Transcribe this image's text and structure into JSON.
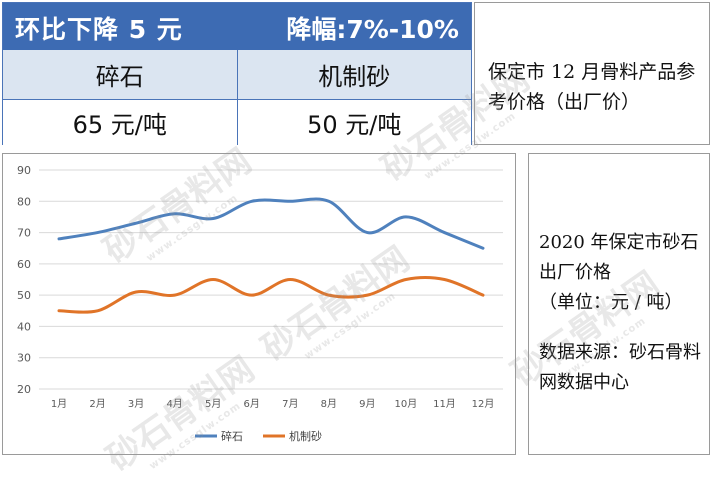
{
  "price_table": {
    "headline_left": "环比下降 5 元",
    "headline_right": "降幅:7%-10%",
    "products": [
      "碎石",
      "机制砂"
    ],
    "prices": [
      "65 元/吨",
      "50 元/吨"
    ]
  },
  "note_top": "保定市 12 月骨料产品参考价格（出厂价）",
  "note_bottom": {
    "line1": "2020 年保定市砂石出厂价格",
    "line2": "（单位：元 / 吨）",
    "source": "数据来源：砂石骨料网数据中心"
  },
  "watermark": {
    "brand": "砂石骨料网",
    "url": "www.cssglw.com"
  },
  "colors": {
    "header_bg": "#3d6bb3",
    "row_bg": "#dbe5f1",
    "series_gravel": "#4f81bd",
    "series_sand": "#e07428"
  },
  "chart_data": {
    "type": "line",
    "title": "",
    "xlabel": "",
    "ylabel": "",
    "categories": [
      "1月",
      "2月",
      "3月",
      "4月",
      "5月",
      "6月",
      "7月",
      "8月",
      "9月",
      "10月",
      "11月",
      "12月"
    ],
    "ylim": [
      20,
      90
    ],
    "yticks": [
      20,
      30,
      40,
      50,
      60,
      70,
      80,
      90
    ],
    "grid": true,
    "legend": "bottom",
    "series": [
      {
        "name": "碎石",
        "color": "#4f81bd",
        "values": [
          68,
          70,
          73,
          76,
          74.5,
          80,
          80,
          80,
          70,
          75,
          70,
          65
        ]
      },
      {
        "name": "机制砂",
        "color": "#e07428",
        "values": [
          45,
          45,
          51,
          50,
          55,
          50,
          55,
          50,
          50,
          55,
          55,
          50
        ]
      }
    ]
  }
}
